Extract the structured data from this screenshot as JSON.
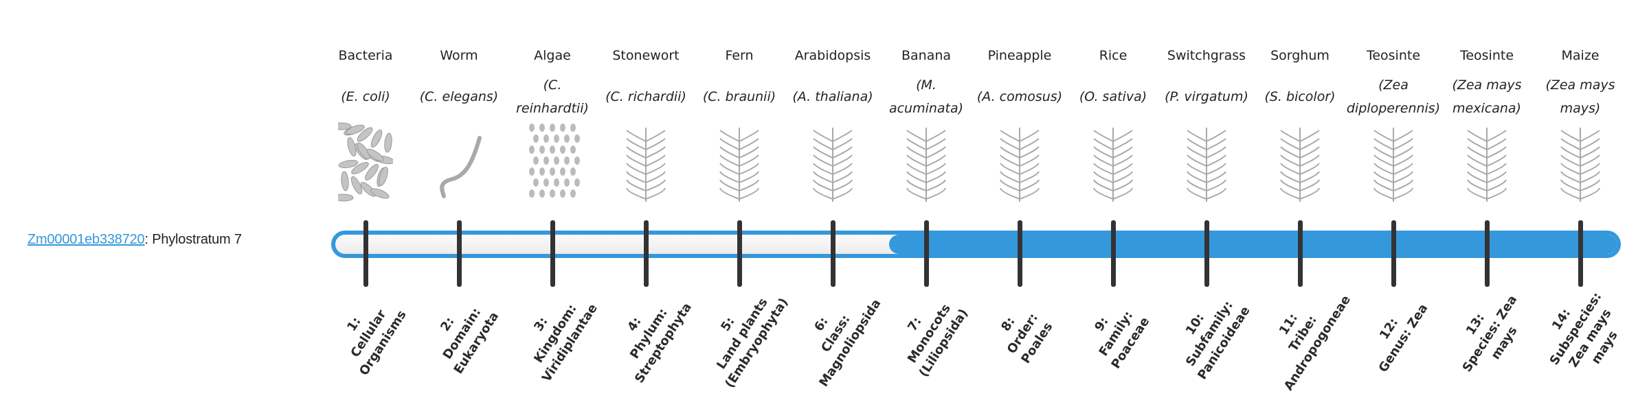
{
  "gene": {
    "id": "Zm00001eb338720",
    "suffix": ": Phylostratum 7"
  },
  "colors": {
    "accent": "#3598dc",
    "tick": "#333333",
    "link": "#3498db"
  },
  "progress": {
    "phylostratum": 7,
    "total_strata": 14
  },
  "organisms": [
    {
      "common": "Bacteria",
      "scientific": "(E. coli)",
      "icon": "bacteria-image"
    },
    {
      "common": "Worm",
      "scientific": "(C. elegans)",
      "icon": "worm-image"
    },
    {
      "common": "Algae",
      "scientific": "(C. reinhardtii)",
      "icon": "algae-image"
    },
    {
      "common": "Stonewort",
      "scientific": "(C. richardii)",
      "icon": "stonewort-image"
    },
    {
      "common": "Fern",
      "scientific": "(C. braunii)",
      "icon": "fern-image"
    },
    {
      "common": "Arabidopsis",
      "scientific": "(A. thaliana)",
      "icon": "arabidopsis-image"
    },
    {
      "common": "Banana",
      "scientific": "(M. acuminata)",
      "icon": "banana-image"
    },
    {
      "common": "Pineapple",
      "scientific": "(A. comosus)",
      "icon": "pineapple-image"
    },
    {
      "common": "Rice",
      "scientific": "(O. sativa)",
      "icon": "rice-image"
    },
    {
      "common": "Switchgrass",
      "scientific": "(P. virgatum)",
      "icon": "switchgrass-image"
    },
    {
      "common": "Sorghum",
      "scientific": "(S. bicolor)",
      "icon": "sorghum-image"
    },
    {
      "common": "Teosinte",
      "scientific": "(Zea diploperennis)",
      "icon": "teosinte-image"
    },
    {
      "common": "Teosinte",
      "scientific": "(Zea mays mexicana)",
      "icon": "teosinte-mexicana-image"
    },
    {
      "common": "Maize",
      "scientific": "(Zea mays mays)",
      "icon": "maize-image"
    }
  ],
  "strata": [
    {
      "rank": "1:",
      "name": "Cellular Organisms"
    },
    {
      "rank": "2:",
      "name": "Domain: Eukaryota"
    },
    {
      "rank": "3:",
      "name": "Kingdom: Viridiplantae"
    },
    {
      "rank": "4:",
      "name": "Phylum: Streptophyta"
    },
    {
      "rank": "5:",
      "name": "Land plants (Embryophyta)"
    },
    {
      "rank": "6:",
      "name": "Class: Magnoliopsida"
    },
    {
      "rank": "7:",
      "name": "Monocots (Liliopsida)"
    },
    {
      "rank": "8:",
      "name": "Order: Poales"
    },
    {
      "rank": "9:",
      "name": "Family: Poaceae"
    },
    {
      "rank": "10:",
      "name": "Subfamily: Panicoideae"
    },
    {
      "rank": "11:",
      "name": "Tribe: Andropogoneae"
    },
    {
      "rank": "12:",
      "name": "Genus: Zea"
    },
    {
      "rank": "13:",
      "name": "Species: Zea mays"
    },
    {
      "rank": "14:",
      "name": "Subspecies: Zea mays mays"
    }
  ]
}
